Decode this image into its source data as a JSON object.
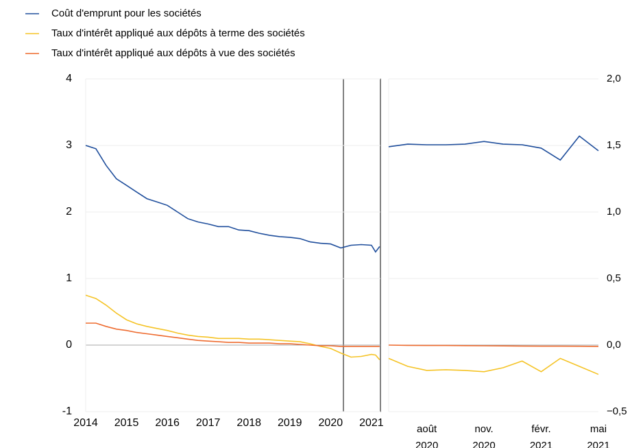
{
  "chart_data": [
    {
      "type": "line",
      "x": [
        2014,
        2014.25,
        2014.5,
        2014.75,
        2015,
        2015.25,
        2015.5,
        2015.75,
        2016,
        2016.25,
        2016.5,
        2016.75,
        2017,
        2017.25,
        2017.5,
        2017.75,
        2018,
        2018.25,
        2018.5,
        2018.75,
        2019,
        2019.25,
        2019.5,
        2019.75,
        2020,
        2020.25,
        2020.5,
        2020.75,
        2021,
        2021.1,
        2021.2
      ],
      "series": [
        {
          "name": "Coût d'emprunt pour les sociétés",
          "color": "#1f4e9c",
          "values": [
            3.0,
            2.95,
            2.7,
            2.5,
            2.4,
            2.3,
            2.2,
            2.15,
            2.1,
            2.0,
            1.9,
            1.85,
            1.82,
            1.78,
            1.78,
            1.73,
            1.72,
            1.68,
            1.65,
            1.63,
            1.62,
            1.6,
            1.55,
            1.53,
            1.52,
            1.46,
            1.5,
            1.51,
            1.5,
            1.4,
            1.48
          ]
        },
        {
          "name": "Taux d'intérêt appliqué aux dépôts à terme des sociétés",
          "color": "#f5c325",
          "values": [
            0.75,
            0.7,
            0.6,
            0.48,
            0.38,
            0.32,
            0.28,
            0.25,
            0.22,
            0.18,
            0.15,
            0.13,
            0.12,
            0.1,
            0.1,
            0.1,
            0.09,
            0.09,
            0.08,
            0.07,
            0.06,
            0.05,
            0.02,
            -0.02,
            -0.05,
            -0.12,
            -0.18,
            -0.17,
            -0.14,
            -0.15,
            -0.22
          ]
        },
        {
          "name": "Taux d'intérêt appliqué aux dépôts à vue des sociétés",
          "color": "#ee6b2f",
          "values": [
            0.33,
            0.33,
            0.28,
            0.24,
            0.22,
            0.19,
            0.17,
            0.15,
            0.13,
            0.11,
            0.09,
            0.07,
            0.06,
            0.05,
            0.04,
            0.04,
            0.03,
            0.03,
            0.03,
            0.02,
            0.02,
            0.01,
            0,
            -0.01,
            -0.01,
            -0.02,
            -0.02,
            -0.02,
            -0.02,
            -0.02,
            -0.02
          ]
        }
      ],
      "xlim": [
        2014,
        2021.22
      ],
      "xticks": [
        2014,
        2015,
        2016,
        2017,
        2018,
        2019,
        2020,
        2021
      ],
      "ylim": [
        -1,
        4
      ],
      "yticks": [
        -1,
        0,
        1,
        2,
        3,
        4
      ],
      "grid": true
    },
    {
      "type": "line",
      "categories": [
        null,
        null,
        "août\n2020",
        null,
        null,
        "nov.\n2020",
        null,
        null,
        "févr.\n2021",
        null,
        null,
        "mai\n2021"
      ],
      "series": [
        {
          "color": "#1f4e9c",
          "axis": "y2",
          "values": [
            1.49,
            1.51,
            1.505,
            1.505,
            1.51,
            1.53,
            1.51,
            1.505,
            1.48,
            1.39,
            1.57,
            1.46
          ]
        },
        {
          "color": "#f5c325",
          "axis": "y2",
          "values": [
            -0.1,
            -0.16,
            -0.19,
            -0.185,
            -0.19,
            -0.2,
            -0.17,
            -0.12,
            -0.2,
            -0.1,
            -0.16,
            -0.22
          ]
        },
        {
          "color": "#ee6b2f",
          "axis": "y2",
          "values": [
            0,
            -0.002,
            -0.003,
            -0.003,
            -0.004,
            -0.005,
            -0.006,
            -0.007,
            -0.008,
            -0.008,
            -0.009,
            -0.01
          ]
        }
      ],
      "y2lim": [
        -0.5,
        2.0
      ],
      "y2ticks": [
        {
          "value": -0.5,
          "label": "−0,5"
        },
        {
          "value": 0,
          "label": "0,0"
        },
        {
          "value": 0.5,
          "label": "0,5"
        },
        {
          "value": 1.0,
          "label": "1,0"
        },
        {
          "value": 1.5,
          "label": "1,5"
        },
        {
          "value": 2.0,
          "label": "2,0"
        }
      ],
      "grid": true
    }
  ]
}
